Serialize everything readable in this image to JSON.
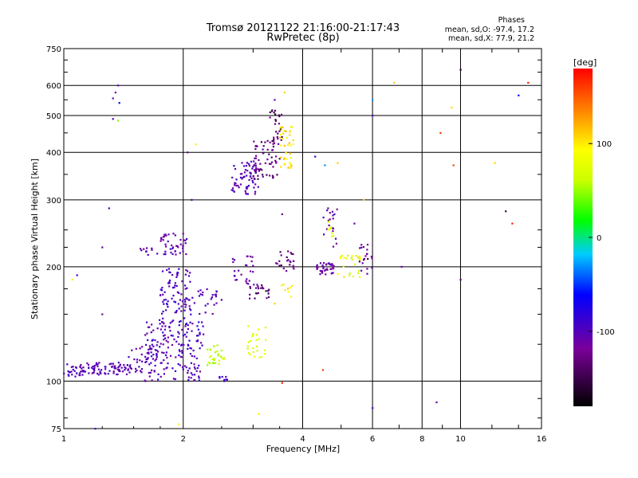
{
  "chart_data": {
    "type": "scatter",
    "title": "Tromsø 20121122 21:16:00-21:17:43",
    "subtitle": "RwPretec (8p)",
    "xlabel": "Frequency [MHz]",
    "ylabel": "Stationary phase Virtual Height [km]",
    "x_scale": "log",
    "y_scale": "log",
    "xlim": [
      1,
      16
    ],
    "ylim": [
      75,
      750
    ],
    "x_ticks": [
      "1",
      "2",
      "4",
      "6",
      "8",
      "10",
      "16"
    ],
    "x_tick_values": [
      1,
      2,
      4,
      6,
      8,
      10,
      16
    ],
    "y_ticks": [
      "750",
      "600",
      "500",
      "400",
      "300",
      "200",
      "100",
      "75"
    ],
    "y_tick_values": [
      750,
      600,
      500,
      400,
      300,
      200,
      100,
      75
    ],
    "grid": true,
    "stats": {
      "heading": "Phases",
      "line_o": "mean, sd,O: -97.4, 17.2",
      "line_x": "mean, sd,X:  77.9, 21.2"
    },
    "colorbar": {
      "label": "[deg]",
      "ticks": [
        "100",
        "0",
        "-100"
      ],
      "tick_values": [
        100,
        0,
        -100
      ],
      "range": [
        -180,
        180
      ]
    },
    "clusters": [
      {
        "x": [
          1.0,
          1.12
        ],
        "y": [
          102,
          112
        ],
        "phase": [
          -110,
          -90
        ],
        "n": 30
      },
      {
        "x": [
          1.12,
          1.45
        ],
        "y": [
          104,
          112
        ],
        "phase": [
          -115,
          -95
        ],
        "n": 70
      },
      {
        "x": [
          1.45,
          1.72
        ],
        "y": [
          105,
          125
        ],
        "phase": [
          -115,
          -90
        ],
        "n": 45
      },
      {
        "x": [
          1.6,
          2.25
        ],
        "y": [
          100,
          145
        ],
        "phase": [
          -120,
          -80
        ],
        "n": 170
      },
      {
        "x": [
          1.75,
          2.1
        ],
        "y": [
          140,
          200
        ],
        "phase": [
          -115,
          -80
        ],
        "n": 90
      },
      {
        "x": [
          1.75,
          2.05
        ],
        "y": [
          215,
          245
        ],
        "phase": [
          -120,
          -95
        ],
        "n": 45
      },
      {
        "x": [
          1.55,
          1.72
        ],
        "y": [
          215,
          225
        ],
        "phase": [
          -115,
          -100
        ],
        "n": 10
      },
      {
        "x": [
          2.1,
          2.5
        ],
        "y": [
          150,
          175
        ],
        "phase": [
          -115,
          -90
        ],
        "n": 25
      },
      {
        "x": [
          2.3,
          2.55
        ],
        "y": [
          110,
          125
        ],
        "phase": [
          45,
          70
        ],
        "n": 30
      },
      {
        "x": [
          2.45,
          2.6
        ],
        "y": [
          100,
          103
        ],
        "phase": [
          -95,
          -80
        ],
        "n": 8
      },
      {
        "x": [
          2.65,
          3.0
        ],
        "y": [
          180,
          215
        ],
        "phase": [
          -125,
          -95
        ],
        "n": 25
      },
      {
        "x": [
          2.9,
          3.3
        ],
        "y": [
          165,
          180
        ],
        "phase": [
          -150,
          -100
        ],
        "n": 25
      },
      {
        "x": [
          2.9,
          3.25
        ],
        "y": [
          115,
          140
        ],
        "phase": [
          60,
          85
        ],
        "n": 25
      },
      {
        "x": [
          2.65,
          3.1
        ],
        "y": [
          310,
          380
        ],
        "phase": [
          -115,
          -90
        ],
        "n": 70
      },
      {
        "x": [
          3.0,
          3.5
        ],
        "y": [
          340,
          430
        ],
        "phase": [
          -150,
          -110
        ],
        "n": 60
      },
      {
        "x": [
          3.3,
          3.55
        ],
        "y": [
          430,
          520
        ],
        "phase": [
          -160,
          -120
        ],
        "n": 25
      },
      {
        "x": [
          3.5,
          3.8
        ],
        "y": [
          360,
          470
        ],
        "phase": [
          80,
          120
        ],
        "n": 40
      },
      {
        "x": [
          3.4,
          3.8
        ],
        "y": [
          195,
          220
        ],
        "phase": [
          -150,
          -110
        ],
        "n": 25
      },
      {
        "x": [
          3.5,
          3.8
        ],
        "y": [
          165,
          180
        ],
        "phase": [
          95,
          115
        ],
        "n": 8
      },
      {
        "x": [
          4.3,
          4.8
        ],
        "y": [
          190,
          205
        ],
        "phase": [
          -125,
          -100
        ],
        "n": 40
      },
      {
        "x": [
          4.5,
          4.9
        ],
        "y": [
          225,
          290
        ],
        "phase": [
          -140,
          -90
        ],
        "n": 20
      },
      {
        "x": [
          4.6,
          4.85
        ],
        "y": [
          240,
          270
        ],
        "phase": [
          60,
          90
        ],
        "n": 8
      },
      {
        "x": [
          4.9,
          5.6
        ],
        "y": [
          185,
          215
        ],
        "phase": [
          55,
          110
        ],
        "n": 25
      },
      {
        "x": [
          5.5,
          6.0
        ],
        "y": [
          190,
          230
        ],
        "phase": [
          -150,
          -100
        ],
        "n": 20
      }
    ],
    "scattered_points": [
      {
        "x": 1.33,
        "y": 555,
        "phase": -110
      },
      {
        "x": 1.35,
        "y": 575,
        "phase": -110
      },
      {
        "x": 1.37,
        "y": 600,
        "phase": -105
      },
      {
        "x": 1.33,
        "y": 490,
        "phase": -95
      },
      {
        "x": 1.37,
        "y": 485,
        "phase": 45
      },
      {
        "x": 1.38,
        "y": 540,
        "phase": -60
      },
      {
        "x": 1.3,
        "y": 285,
        "phase": -100
      },
      {
        "x": 1.25,
        "y": 225,
        "phase": -110
      },
      {
        "x": 1.08,
        "y": 190,
        "phase": -100
      },
      {
        "x": 1.05,
        "y": 185,
        "phase": 100
      },
      {
        "x": 1.25,
        "y": 150,
        "phase": -120
      },
      {
        "x": 1.2,
        "y": 75,
        "phase": -100
      },
      {
        "x": 2.05,
        "y": 400,
        "phase": -110
      },
      {
        "x": 2.15,
        "y": 420,
        "phase": 100
      },
      {
        "x": 2.1,
        "y": 300,
        "phase": -110
      },
      {
        "x": 1.95,
        "y": 77,
        "phase": 100
      },
      {
        "x": 3.1,
        "y": 82,
        "phase": 100
      },
      {
        "x": 4.3,
        "y": 390,
        "phase": -80
      },
      {
        "x": 4.55,
        "y": 370,
        "phase": -30
      },
      {
        "x": 4.9,
        "y": 375,
        "phase": 110
      },
      {
        "x": 5.4,
        "y": 260,
        "phase": -110
      },
      {
        "x": 5.7,
        "y": 300,
        "phase": 110
      },
      {
        "x": 6.0,
        "y": 550,
        "phase": -30
      },
      {
        "x": 6.0,
        "y": 500,
        "phase": -100
      },
      {
        "x": 6.8,
        "y": 610,
        "phase": 110
      },
      {
        "x": 7.1,
        "y": 200,
        "phase": -120
      },
      {
        "x": 6.0,
        "y": 85,
        "phase": -100
      },
      {
        "x": 8.7,
        "y": 88,
        "phase": -110
      },
      {
        "x": 8.9,
        "y": 450,
        "phase": 160
      },
      {
        "x": 9.5,
        "y": 525,
        "phase": 105
      },
      {
        "x": 9.6,
        "y": 370,
        "phase": 160
      },
      {
        "x": 10.0,
        "y": 660,
        "phase": -160
      },
      {
        "x": 10.0,
        "y": 185,
        "phase": -130
      },
      {
        "x": 12.2,
        "y": 375,
        "phase": 110
      },
      {
        "x": 13.0,
        "y": 280,
        "phase": -150
      },
      {
        "x": 13.5,
        "y": 260,
        "phase": 170
      },
      {
        "x": 14.0,
        "y": 565,
        "phase": -60
      },
      {
        "x": 14.8,
        "y": 610,
        "phase": 170
      },
      {
        "x": 3.55,
        "y": 99,
        "phase": 170
      },
      {
        "x": 3.55,
        "y": 275,
        "phase": -130
      },
      {
        "x": 3.4,
        "y": 550,
        "phase": -110
      },
      {
        "x": 3.6,
        "y": 575,
        "phase": 110
      },
      {
        "x": 4.5,
        "y": 107,
        "phase": 160
      },
      {
        "x": 3.4,
        "y": 160,
        "phase": 110
      }
    ]
  }
}
